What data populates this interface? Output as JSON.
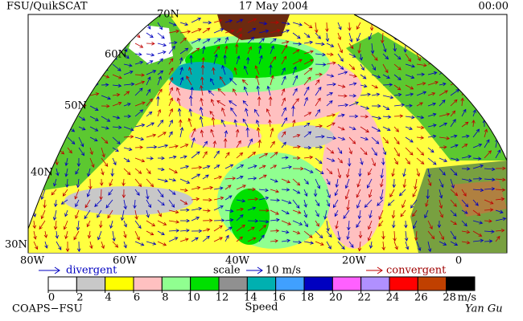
{
  "header": {
    "left": "FSU/QuikSCAT",
    "center": "17 May 2004",
    "right": "00:00"
  },
  "map": {
    "lat_labels": [
      "70N",
      "60N",
      "50N",
      "40N",
      "30N"
    ],
    "lon_labels": [
      "80W",
      "60W",
      "40W",
      "20W",
      "0"
    ]
  },
  "legend": {
    "divergent": "divergent",
    "scale": "scale",
    "scale_value": "10 m/s",
    "convergent": "convergent"
  },
  "colorbar": {
    "ticks": [
      0,
      2,
      4,
      6,
      8,
      10,
      12,
      14,
      16,
      18,
      20,
      22,
      24,
      26,
      28
    ],
    "colors": [
      "#ffffff",
      "#c8c8c8",
      "#ffff00",
      "#ffc0c0",
      "#90ff90",
      "#00e000",
      "#909090",
      "#00b0b0",
      "#40a0ff",
      "#0000c0",
      "#ff60ff",
      "#b090ff",
      "#ff0000",
      "#c04000",
      "#000000"
    ],
    "unit": "m/s",
    "label": "Speed"
  },
  "footer": {
    "left": "COAPS−FSU",
    "right": "Yan Gu"
  }
}
